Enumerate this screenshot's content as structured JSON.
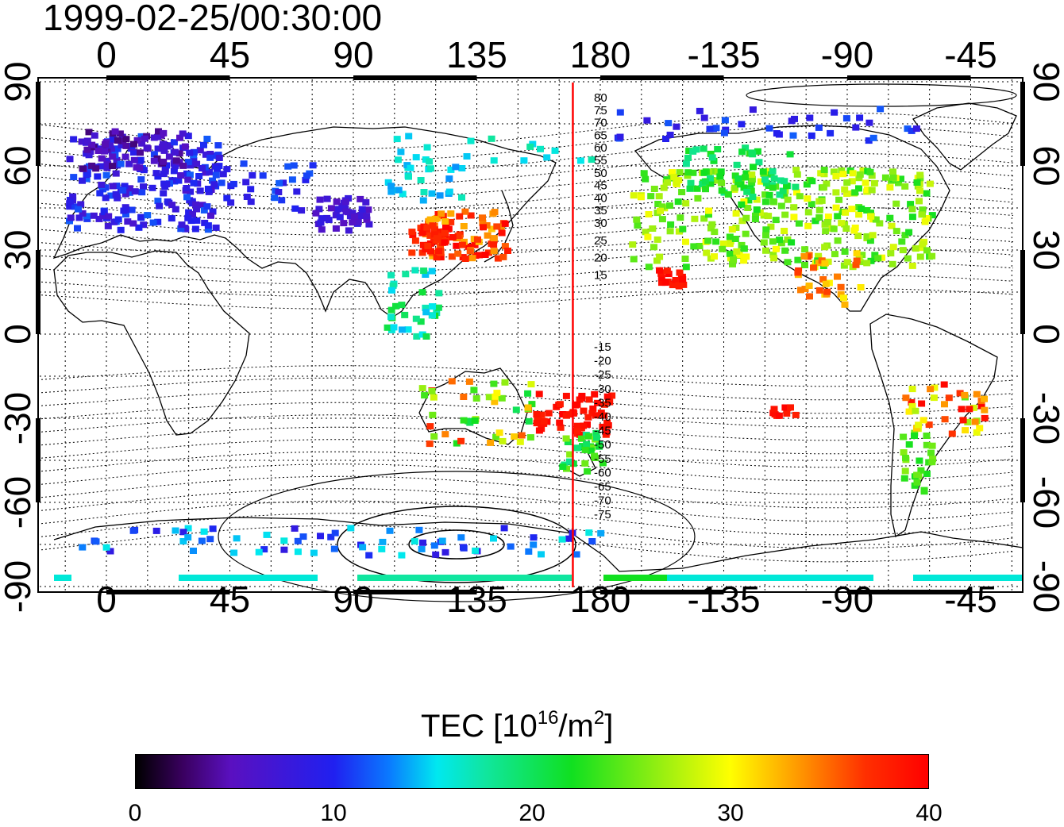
{
  "title": "1999-02-25/00:30:00",
  "map": {
    "lon_labels": [
      "0",
      "45",
      "90",
      "135",
      "180",
      "-135",
      "-90",
      "-45"
    ],
    "lat_labels": [
      "90",
      "60",
      "30",
      "0",
      "-30",
      "-60",
      "-90"
    ],
    "meridian_marker_lon": 170,
    "contour_labels_north": [
      "80",
      "75",
      "70",
      "65",
      "60",
      "55",
      "50",
      "45",
      "40",
      "35",
      "30",
      "25",
      "20",
      "15"
    ],
    "contour_labels_south": [
      "-15",
      "-20",
      "-25",
      "-30",
      "-35",
      "-40",
      "-45",
      "-50",
      "-55",
      "-60",
      "-65",
      "-70",
      "-75"
    ],
    "marker_color": "#ff0000",
    "gridlines": "dotted"
  },
  "colorbar": {
    "title_prefix": "TEC  [10",
    "title_sup1": "16",
    "title_mid": "/m",
    "title_sup2": "2",
    "title_suffix": "]",
    "ticks": [
      "0",
      "10",
      "20",
      "30",
      "40"
    ],
    "range": [
      0,
      40
    ],
    "colors": [
      "#000000",
      "#5a10c0",
      "#2020f0",
      "#00e8f0",
      "#10e020",
      "#ffff00",
      "#ff3000",
      "#ff0000"
    ]
  }
}
